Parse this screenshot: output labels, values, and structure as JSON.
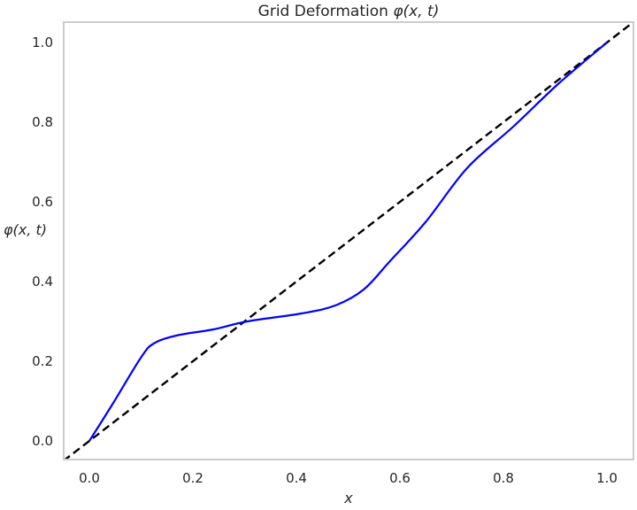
{
  "title_text": "Grid Deformation",
  "title_math": "φ(x, t)",
  "ylabel_text": "φ(x, t)",
  "xlabel_text": "x",
  "xticks": [
    "0.0",
    "0.2",
    "0.4",
    "0.6",
    "0.8",
    "1.0"
  ],
  "yticks": [
    "0.0",
    "0.2",
    "0.4",
    "0.6",
    "0.8",
    "1.0"
  ],
  "colors": {
    "deformation_line": "#0000ff",
    "identity_line": "#000000",
    "axes_frame": "#cccccc",
    "text": "#262626",
    "background": "#ffffff"
  },
  "chart_data": {
    "type": "line",
    "title": "Grid Deformation φ(x, t)",
    "xlabel": "x",
    "ylabel": "φ(x, t)",
    "xlim": [
      -0.05,
      1.05
    ],
    "ylim": [
      -0.05,
      1.05
    ],
    "grid": false,
    "legend": null,
    "xticks": [
      0.0,
      0.2,
      0.4,
      0.6,
      0.8,
      1.0
    ],
    "yticks": [
      0.0,
      0.2,
      0.4,
      0.6,
      0.8,
      1.0
    ],
    "series": [
      {
        "name": "φ(x, t)",
        "style": "solid",
        "color": "#0000ff",
        "x": [
          0.0,
          0.046,
          0.1,
          0.125,
          0.17,
          0.24,
          0.305,
          0.41,
          0.475,
          0.53,
          0.58,
          0.65,
          0.73,
          0.82,
          0.905,
          1.0
        ],
        "y": [
          0.0,
          0.095,
          0.21,
          0.245,
          0.265,
          0.28,
          0.3,
          0.32,
          0.34,
          0.38,
          0.45,
          0.55,
          0.685,
          0.79,
          0.895,
          1.0
        ]
      },
      {
        "name": "identity",
        "style": "dashed",
        "color": "#000000",
        "x": [
          -0.05,
          1.05
        ],
        "y": [
          -0.05,
          1.05
        ]
      }
    ]
  }
}
